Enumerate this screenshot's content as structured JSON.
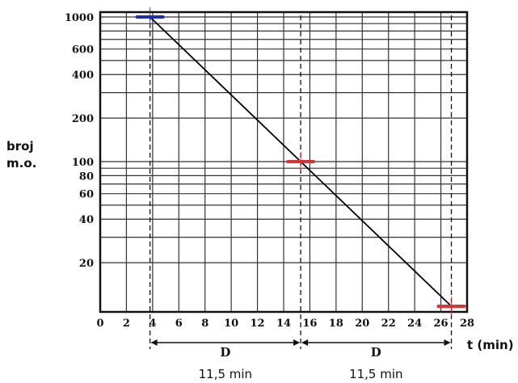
{
  "chart_data": {
    "type": "line",
    "ylabel": [
      "broj",
      "m.o."
    ],
    "xlabel": "t (min)",
    "x_scale": "linear",
    "y_scale": "log",
    "xlim": [
      0,
      28
    ],
    "ylim": [
      10,
      1000
    ],
    "x_ticks": [
      0,
      2,
      4,
      6,
      8,
      10,
      12,
      14,
      16,
      18,
      20,
      22,
      24,
      26,
      28
    ],
    "y_tick_labels": [
      1000,
      600,
      400,
      200,
      100,
      80,
      60,
      40,
      20
    ],
    "series": [
      {
        "x": [
          3.8,
          15.3,
          26.8
        ],
        "y": [
          1000,
          100,
          10
        ],
        "color": "#000000"
      }
    ],
    "markers": [
      {
        "x": 3.8,
        "y": 1000,
        "color": "#1a2cc8"
      },
      {
        "x": 15.3,
        "y": 100,
        "color": "#e23030"
      },
      {
        "x": 26.8,
        "y": 10,
        "color": "#e23030"
      }
    ],
    "intervals": [
      {
        "from": 3.8,
        "to": 15.3,
        "label": "D",
        "value": "11,5 min"
      },
      {
        "from": 15.3,
        "to": 26.8,
        "label": "D",
        "value": "11,5 min"
      }
    ],
    "grid": true,
    "legend": "none"
  }
}
